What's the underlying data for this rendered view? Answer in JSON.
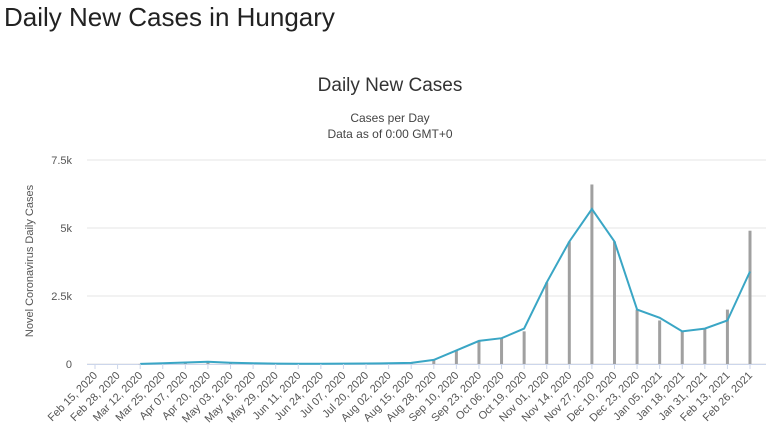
{
  "page_title": "Daily New Cases in Hungary",
  "chart_data": {
    "type": "bar",
    "title": "Daily New Cases",
    "subtitle_lines": [
      "Cases per Day",
      "Data as of 0:00 GMT+0"
    ],
    "xlabel": "",
    "ylabel": "Novel Coronavirus Daily Cases",
    "ylim": [
      0,
      7500
    ],
    "y_ticks": [
      0,
      2500,
      5000,
      7500
    ],
    "y_tick_labels": [
      "0",
      "2.5k",
      "5k",
      "7.5k"
    ],
    "grid": true,
    "x_tick_labels": [
      "Feb 15, 2020",
      "Feb 28, 2020",
      "Mar 12, 2020",
      "Mar 25, 2020",
      "Apr 07, 2020",
      "Apr 20, 2020",
      "May 03, 2020",
      "May 16, 2020",
      "May 29, 2020",
      "Jun 11, 2020",
      "Jun 24, 2020",
      "Jul 07, 2020",
      "Jul 20, 2020",
      "Aug 02, 2020",
      "Aug 15, 2020",
      "Aug 28, 2020",
      "Sep 10, 2020",
      "Sep 23, 2020",
      "Oct 06, 2020",
      "Oct 19, 2020",
      "Nov 01, 2020",
      "Nov 14, 2020",
      "Nov 27, 2020",
      "Dec 10, 2020",
      "Dec 23, 2020",
      "Jan 05, 2021",
      "Jan 18, 2021",
      "Jan 31, 2021",
      "Feb 13, 2021",
      "Feb 26, 2021"
    ],
    "series": [
      {
        "type": "bar",
        "color": "#a0a0a0",
        "points": [
          [
            "Mar 12, 2020",
            3
          ],
          [
            "Mar 25, 2020",
            40
          ],
          [
            "Apr 07, 2020",
            60
          ],
          [
            "Apr 20, 2020",
            100
          ],
          [
            "May 03, 2020",
            40
          ],
          [
            "May 16, 2020",
            30
          ],
          [
            "May 29, 2020",
            15
          ],
          [
            "Jun 11, 2020",
            5
          ],
          [
            "Jun 24, 2020",
            5
          ],
          [
            "Jul 07, 2020",
            10
          ],
          [
            "Jul 20, 2020",
            10
          ],
          [
            "Aug 02, 2020",
            20
          ],
          [
            "Aug 15, 2020",
            30
          ],
          [
            "Aug 28, 2020",
            150
          ],
          [
            "Sep 10, 2020",
            500
          ],
          [
            "Sep 23, 2020",
            850
          ],
          [
            "Oct 06, 2020",
            950
          ],
          [
            "Oct 19, 2020",
            1200
          ],
          [
            "Nov 01, 2020",
            3000
          ],
          [
            "Nov 14, 2020",
            4500
          ],
          [
            "Nov 27, 2020",
            6600
          ],
          [
            "Dec 10, 2020",
            4500
          ],
          [
            "Dec 23, 2020",
            2000
          ],
          [
            "Jan 05, 2021",
            1600
          ],
          [
            "Jan 18, 2021",
            1200
          ],
          [
            "Jan 31, 2021",
            1300
          ],
          [
            "Feb 13, 2021",
            2000
          ],
          [
            "Feb 26, 2021",
            4900
          ]
        ]
      },
      {
        "type": "line",
        "color": "#3aa6c5",
        "points": [
          [
            "Mar 12, 2020",
            2
          ],
          [
            "Mar 25, 2020",
            25
          ],
          [
            "Apr 07, 2020",
            55
          ],
          [
            "Apr 20, 2020",
            80
          ],
          [
            "May 03, 2020",
            45
          ],
          [
            "May 16, 2020",
            25
          ],
          [
            "May 29, 2020",
            15
          ],
          [
            "Jun 11, 2020",
            10
          ],
          [
            "Jun 24, 2020",
            10
          ],
          [
            "Jul 07, 2020",
            15
          ],
          [
            "Jul 20, 2020",
            20
          ],
          [
            "Aug 02, 2020",
            25
          ],
          [
            "Aug 15, 2020",
            40
          ],
          [
            "Aug 28, 2020",
            150
          ],
          [
            "Sep 10, 2020",
            500
          ],
          [
            "Sep 23, 2020",
            850
          ],
          [
            "Oct 06, 2020",
            950
          ],
          [
            "Oct 19, 2020",
            1300
          ],
          [
            "Nov 01, 2020",
            3000
          ],
          [
            "Nov 14, 2020",
            4500
          ],
          [
            "Nov 27, 2020",
            5700
          ],
          [
            "Dec 10, 2020",
            4500
          ],
          [
            "Dec 23, 2020",
            2000
          ],
          [
            "Jan 05, 2021",
            1700
          ],
          [
            "Jan 18, 2021",
            1200
          ],
          [
            "Jan 31, 2021",
            1300
          ],
          [
            "Feb 13, 2021",
            1600
          ],
          [
            "Feb 26, 2021",
            3400
          ]
        ]
      }
    ]
  }
}
